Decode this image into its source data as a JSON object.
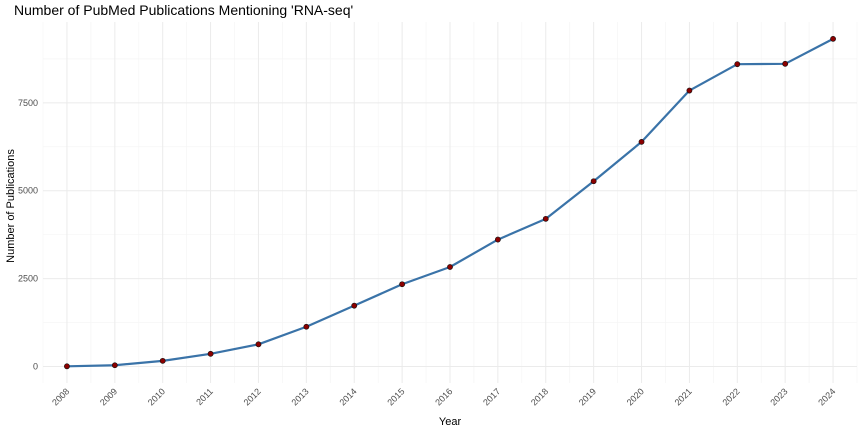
{
  "chart_data": {
    "type": "line",
    "title": "Number of PubMed Publications Mentioning 'RNA-seq'",
    "xlabel": "Year",
    "ylabel": "Number of Publications",
    "x": [
      "2008",
      "2009",
      "2010",
      "2011",
      "2012",
      "2013",
      "2014",
      "2015",
      "2016",
      "2017",
      "2018",
      "2019",
      "2020",
      "2021",
      "2022",
      "2023",
      "2024"
    ],
    "series": [
      {
        "values": [
          5,
          35,
          160,
          360,
          630,
          1130,
          1730,
          2340,
          2830,
          3610,
          4200,
          5270,
          6390,
          7850,
          8600,
          8610,
          9320
        ]
      }
    ],
    "yticks": [
      0,
      2500,
      5000,
      7500
    ],
    "ytick_labels": [
      "0",
      "2500",
      "5000",
      "7500"
    ],
    "ylim": [
      -470,
      9800
    ],
    "grid": true,
    "line_color": "#3a73a8",
    "point_color": "#8b0000"
  }
}
